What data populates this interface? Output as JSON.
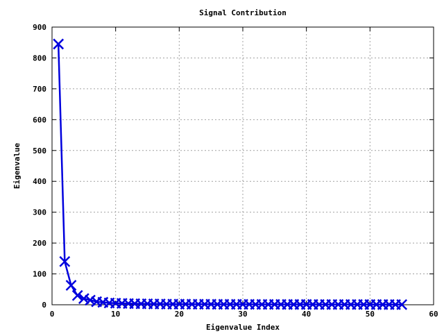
{
  "chart_data": {
    "type": "line",
    "title": "Signal Contribution",
    "xlabel": "Eigenvalue Index",
    "ylabel": "Eigenvalue",
    "xlim": [
      0,
      60
    ],
    "ylim": [
      0,
      900
    ],
    "x_ticks": [
      0,
      10,
      20,
      30,
      40,
      50,
      60
    ],
    "y_ticks": [
      0,
      100,
      200,
      300,
      400,
      500,
      600,
      700,
      800,
      900
    ],
    "grid": true,
    "legend": "none",
    "marker": "x",
    "series": [
      {
        "color": "#0000dd",
        "x": [
          1,
          2,
          3,
          4,
          5,
          6,
          7,
          8,
          9,
          10,
          11,
          12,
          13,
          14,
          15,
          16,
          17,
          18,
          19,
          20,
          21,
          22,
          23,
          24,
          25,
          26,
          27,
          28,
          29,
          30,
          31,
          32,
          33,
          34,
          35,
          36,
          37,
          38,
          39,
          40,
          41,
          42,
          43,
          44,
          45,
          46,
          47,
          48,
          49,
          50,
          51,
          52,
          53,
          54,
          55
        ],
        "y": [
          845,
          140,
          63,
          30,
          20,
          15,
          10,
          8,
          6,
          5,
          4.5,
          4,
          3.5,
          3,
          3,
          2.5,
          2.5,
          2,
          2,
          2,
          2,
          1.8,
          1.8,
          1.6,
          1.6,
          1.5,
          1.5,
          1.4,
          1.4,
          1.3,
          1.3,
          1.2,
          1.2,
          1.1,
          1.1,
          1.1,
          1,
          1,
          1,
          1,
          1,
          0.9,
          0.9,
          0.9,
          0.9,
          0.8,
          0.8,
          0.8,
          0.8,
          0.7,
          0.7,
          0.7,
          0.7,
          0.6,
          0.6
        ]
      }
    ]
  }
}
